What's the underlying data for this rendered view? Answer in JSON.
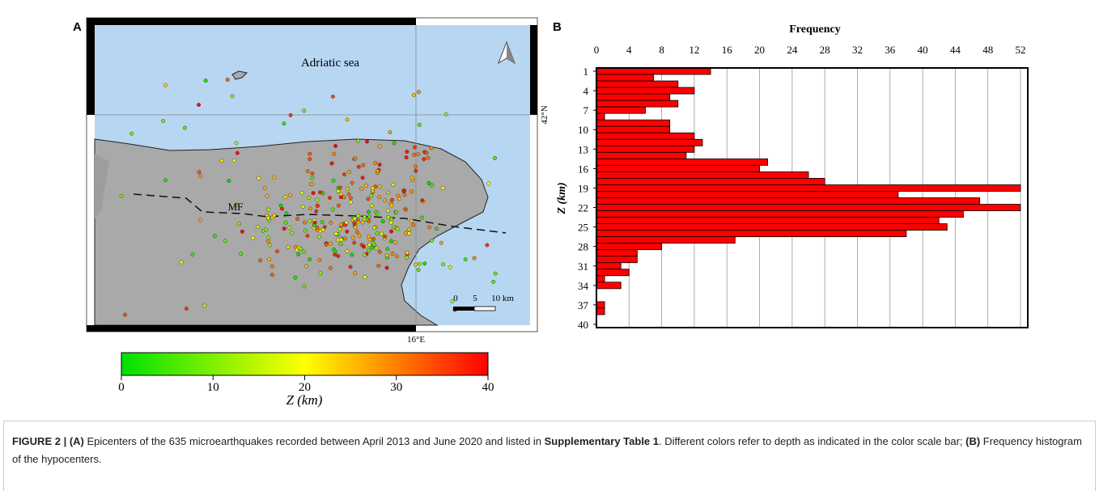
{
  "panel_labels": [
    "A",
    "B"
  ],
  "map": {
    "sea_label": "Adriatic sea",
    "fault_label": "MF",
    "lat_label": "42°N",
    "lon_label": "16°E",
    "scale_labels": [
      "0",
      "5",
      "10 km"
    ],
    "colorbar": {
      "lim": [
        0,
        40
      ],
      "ticks": [
        0,
        10,
        20,
        30,
        40
      ],
      "label": "Z (km)",
      "colors": [
        "#00e000",
        "#ffff00",
        "#ff0000"
      ]
    }
  },
  "chart_data": {
    "type": "barh",
    "title": "Frequency",
    "y_label": "Z (km)",
    "color": "#ff0000",
    "grid": true,
    "categories": [
      1,
      null,
      null,
      4,
      null,
      null,
      7,
      null,
      null,
      10,
      null,
      null,
      13,
      null,
      null,
      16,
      null,
      null,
      19,
      null,
      null,
      22,
      null,
      null,
      25,
      null,
      null,
      28,
      null,
      null,
      31,
      null,
      null,
      34,
      null,
      null,
      37,
      null,
      null,
      40
    ],
    "values": [
      14,
      7,
      10,
      12,
      9,
      10,
      6,
      1,
      9,
      9,
      12,
      13,
      12,
      11,
      21,
      20,
      26,
      28,
      52,
      37,
      47,
      52,
      45,
      42,
      43,
      38,
      17,
      8,
      5,
      5,
      3,
      4,
      1,
      3,
      0,
      0,
      1,
      1,
      0,
      0
    ],
    "xlim": [
      0,
      52
    ],
    "xticks": [
      0,
      4,
      8,
      12,
      16,
      20,
      24,
      28,
      32,
      36,
      40,
      44,
      48,
      52
    ]
  },
  "caption": {
    "parts": [
      {
        "text": "FIGURE 2 | (A)",
        "bold": true
      },
      {
        "text": " Epicenters of the 635 microearthquakes recorded between April 2013 and June 2020 and listed in ",
        "bold": false
      },
      {
        "text": "Supplementary Table 1",
        "bold": true
      },
      {
        "text": ". Different colors refer to depth as indicated in the color scale bar; ",
        "bold": false
      },
      {
        "text": "(B)",
        "bold": true
      },
      {
        "text": " Frequency histogram of the hypocenters.",
        "bold": false
      }
    ]
  }
}
